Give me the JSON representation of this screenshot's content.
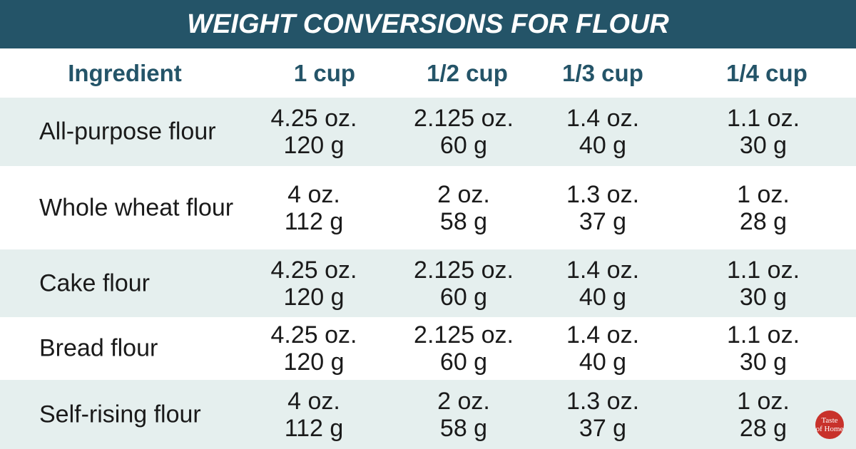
{
  "title": "WEIGHT CONVERSIONS FOR FLOUR",
  "table": {
    "headers": [
      "Ingredient",
      "1 cup",
      "1/2 cup",
      "1/3 cup",
      "1/4 cup"
    ],
    "rows": [
      {
        "label": "All-purpose flour",
        "cells": [
          [
            "4.25 oz.",
            "120 g"
          ],
          [
            "2.125 oz.",
            "60 g"
          ],
          [
            "1.4 oz.",
            "40 g"
          ],
          [
            "1.1 oz.",
            "30 g"
          ]
        ]
      },
      {
        "label": "Whole wheat flour",
        "cells": [
          [
            "4 oz.",
            "112 g"
          ],
          [
            "2 oz.",
            "58 g"
          ],
          [
            "1.3 oz.",
            "37 g"
          ],
          [
            "1 oz.",
            "28 g"
          ]
        ]
      },
      {
        "label": "Cake flour",
        "cells": [
          [
            "4.25 oz.",
            "120 g"
          ],
          [
            "2.125 oz.",
            "60 g"
          ],
          [
            "1.4 oz.",
            "40 g"
          ],
          [
            "1.1 oz.",
            "30 g"
          ]
        ]
      },
      {
        "label": "Bread flour",
        "cells": [
          [
            "4.25 oz.",
            "120 g"
          ],
          [
            "2.125 oz.",
            "60 g"
          ],
          [
            "1.4 oz.",
            "40 g"
          ],
          [
            "1.1 oz.",
            "30 g"
          ]
        ]
      },
      {
        "label": "Self-rising flour",
        "cells": [
          [
            "4 oz.",
            "112 g"
          ],
          [
            "2 oz.",
            "58 g"
          ],
          [
            "1.3 oz.",
            "37 g"
          ],
          [
            "1 oz.",
            "28 g"
          ]
        ]
      }
    ]
  },
  "logo": [
    "Taste",
    "of Home"
  ]
}
